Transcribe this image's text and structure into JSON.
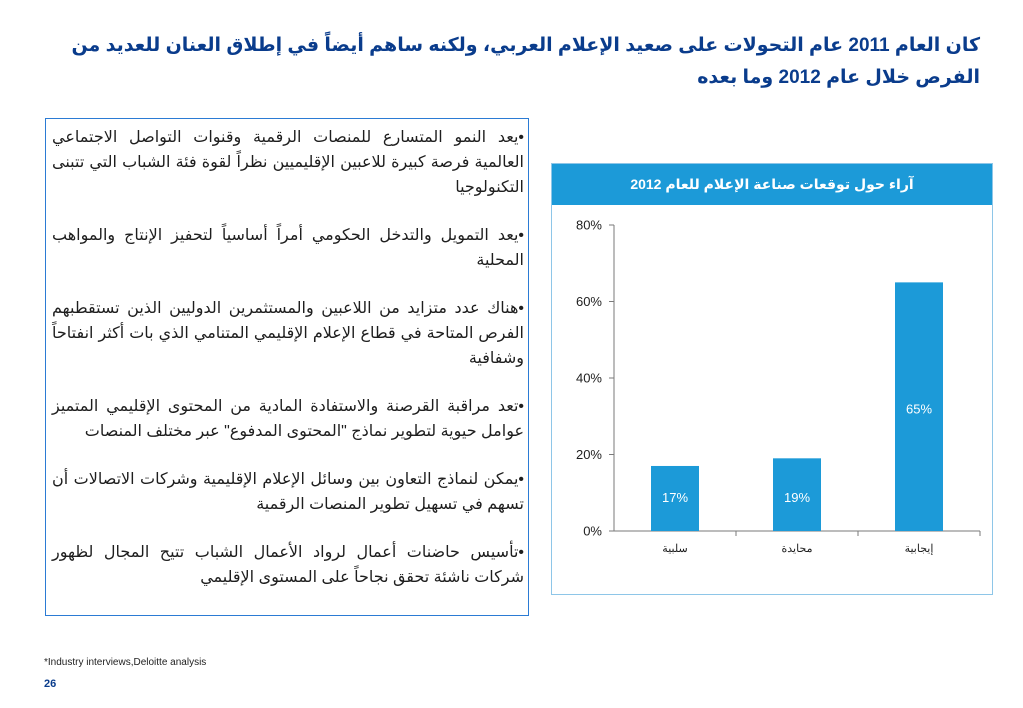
{
  "slide": {
    "title": "كان العام 2011 عام التحولات على صعيد الإعلام العربي، ولكنه ساهم أيضاً في إطلاق العنان للعديد من الفرص خلال عام 2012 وما بعده",
    "bullets": [
      "•يعد النمو المتسارع للمنصات الرقمية وقنوات التواصل الاجتماعي العالمية فرصة كبيرة للاعبين الإقليميين نظراً لقوة فئة الشباب التي تتبنى التكنولوجيا",
      "•يعد التمويل والتدخل الحكومي أمراً أساسياً لتحفيز الإنتاج والمواهب المحلية",
      "•هناك عدد متزايد من اللاعبين والمستثمرين الدوليين الذين تستقطبهم الفرص المتاحة في قطاع الإعلام الإقليمي المتنامي الذي بات أكثر انفتاحاً وشفافية",
      "•تعد مراقبة القرصنة والاستفادة المادية من المحتوى الإقليمي المتميز عوامل حيوية لتطوير نماذج \"المحتوى المدفوع\" عبر مختلف المنصات",
      "•يمكن لنماذج التعاون بين وسائل الإعلام الإقليمية وشركات الاتصالات أن تسهم في تسهيل تطوير المنصات الرقمية",
      "•تأسيس حاضنات أعمال لرواد الأعمال الشباب تتيح المجال لظهور شركات ناشئة تحقق نجاحاً على المستوى الإقليمي"
    ],
    "footnote": "*Industry interviews,Deloitte analysis",
    "page_number": "26"
  },
  "colors": {
    "bar": "#1c9ad8",
    "header_bg": "#1c9ad8",
    "title": "#0a3c8c",
    "text_box_border": "#2b7bd4"
  },
  "chart_data": {
    "type": "bar",
    "title": "آراء حول توقعات صناعة الإعلام للعام 2012",
    "categories": [
      "سلبية",
      "محايدة",
      "إيجابية"
    ],
    "values": [
      17,
      19,
      65
    ],
    "data_labels": [
      "17%",
      "19%",
      "65%"
    ],
    "y_ticks": [
      "0%",
      "20%",
      "40%",
      "60%",
      "80%"
    ],
    "ylim": [
      0,
      80
    ],
    "grid": false,
    "legend": "none"
  }
}
